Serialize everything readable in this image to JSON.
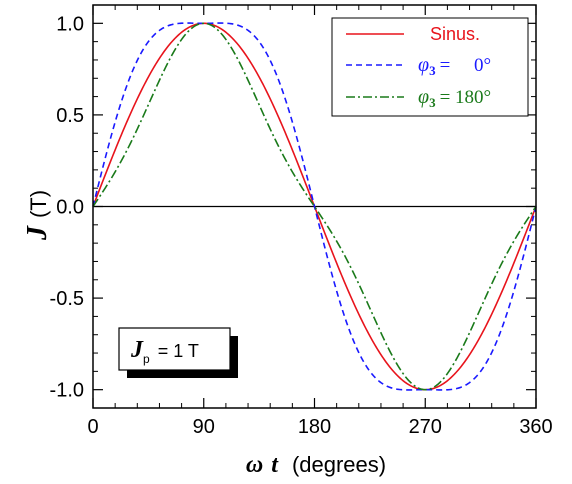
{
  "chart_data": {
    "type": "line",
    "title": "",
    "xlabel": {
      "symbol_omega": "ω",
      "symbol_t": "t",
      "text": "(degrees)"
    },
    "ylabel": {
      "symbol": "J",
      "unit": "(T)"
    },
    "xlim": [
      0,
      360
    ],
    "ylim": [
      -1.1,
      1.1
    ],
    "x_ticks": [
      0,
      90,
      180,
      270,
      360
    ],
    "x_tick_labels": [
      "0",
      "90",
      "180",
      "270",
      "360"
    ],
    "y_ticks": [
      1.0,
      0.5,
      0.0,
      -0.5,
      -1.0
    ],
    "y_tick_labels": [
      "1.0",
      "0.5",
      "0.0",
      "-0.5",
      "-1.0"
    ],
    "x_minor_step": 18,
    "y_minor_step": 0.1,
    "grid": false,
    "legend_position": "top-right",
    "annotation": {
      "symbol": "J",
      "subscript": "p",
      "text": "= 1 T"
    },
    "series": [
      {
        "name": "Sinus.",
        "color": "#e8141c",
        "style": "solid",
        "h3_amplitude": 0,
        "h3_phase_deg": 0
      },
      {
        "name": "φ3 = 0°",
        "legend_symbol": "φ",
        "legend_subscript": "3",
        "legend_value": "=     0°",
        "color": "#1a1aff",
        "style": "dashed",
        "h3_amplitude": 0.12,
        "h3_phase_deg": 0
      },
      {
        "name": "φ3 = 180°",
        "legend_symbol": "φ",
        "legend_subscript": "3",
        "legend_value": "= 180°",
        "color": "#1a7a1a",
        "style": "dashdot",
        "h3_amplitude": 0.12,
        "h3_phase_deg": 180
      }
    ],
    "zero_line_color": "#000000"
  }
}
